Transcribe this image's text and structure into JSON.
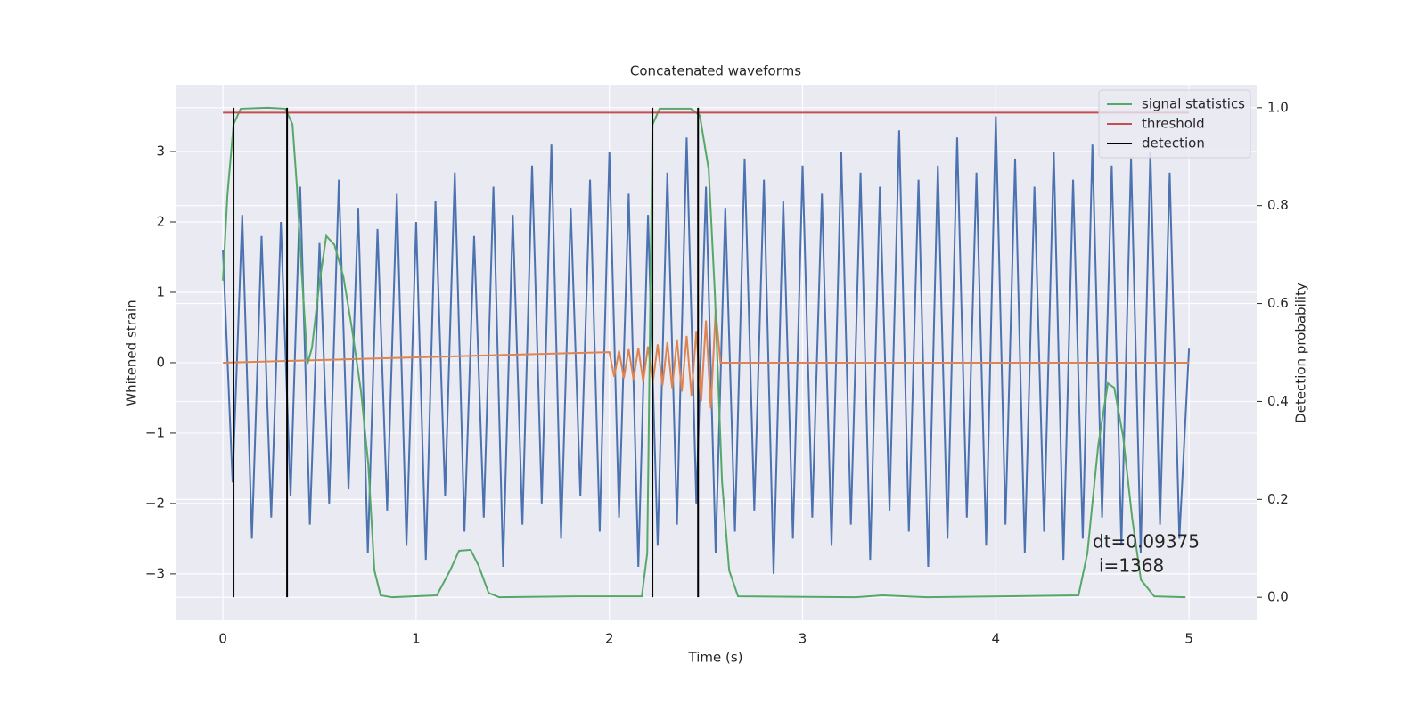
{
  "chart_data": {
    "type": "line",
    "title": "Concatenated waveforms",
    "x_label": "Time (s)",
    "y_label": "Whitened strain",
    "y2_label": "Detection probability",
    "xlim": [
      -0.245,
      5.35
    ],
    "ylim": [
      -3.66,
      3.95
    ],
    "y2lim": [
      -0.047,
      1.047
    ],
    "xticks": [
      0,
      1,
      2,
      3,
      4,
      5
    ],
    "yticks": [
      {
        "value": -3,
        "label": "−3"
      },
      {
        "value": -2,
        "label": "−2"
      },
      {
        "value": -1,
        "label": "−1"
      },
      0,
      1,
      2,
      3
    ],
    "y2ticks": [
      {
        "value": 0,
        "label": "0.0"
      },
      0.2,
      0.4,
      0.6,
      0.8,
      {
        "value": 1,
        "label": "1.0"
      }
    ],
    "grid": true,
    "legend": "upper right",
    "series": [
      {
        "color": "#4c72b0",
        "x": [
          0,
          0.05,
          0.1,
          0.15,
          0.2,
          0.25,
          0.3,
          0.35,
          0.4,
          0.45,
          0.5,
          0.55,
          0.6,
          0.65,
          0.7,
          0.75,
          0.8,
          0.85,
          0.9,
          0.95,
          1,
          1.05,
          1.1,
          1.15,
          1.2,
          1.25,
          1.3,
          1.35,
          1.4,
          1.45,
          1.5,
          1.55,
          1.6,
          1.65,
          1.7,
          1.75,
          1.8,
          1.85,
          1.9,
          1.95,
          2,
          2.05,
          2.1,
          2.15,
          2.2,
          2.25,
          2.3,
          2.35,
          2.4,
          2.45,
          2.5,
          2.55,
          2.6,
          2.65,
          2.7,
          2.75,
          2.8,
          2.85,
          2.9,
          2.95,
          3,
          3.05,
          3.1,
          3.15,
          3.2,
          3.25,
          3.3,
          3.35,
          3.4,
          3.45,
          3.5,
          3.55,
          3.6,
          3.65,
          3.7,
          3.75,
          3.8,
          3.85,
          3.9,
          3.95,
          4,
          4.05,
          4.1,
          4.15,
          4.2,
          4.25,
          4.3,
          4.35,
          4.4,
          4.45,
          4.5,
          4.55,
          4.6,
          4.65,
          4.7,
          4.75,
          4.8,
          4.85,
          4.9,
          4.95,
          5
        ],
        "values": [
          1.6,
          -1.7,
          2.1,
          -2.5,
          1.8,
          -2.2,
          2.0,
          -1.9,
          2.5,
          -2.3,
          1.7,
          -2.0,
          2.6,
          -1.8,
          2.2,
          -2.7,
          1.9,
          -2.1,
          2.4,
          -2.6,
          2.0,
          -2.8,
          2.3,
          -1.9,
          2.7,
          -2.4,
          1.8,
          -2.2,
          2.5,
          -2.9,
          2.1,
          -2.3,
          2.8,
          -2.0,
          3.1,
          -2.5,
          2.2,
          -1.9,
          2.6,
          -2.4,
          3.0,
          -2.2,
          2.4,
          -2.9,
          2.1,
          -2.6,
          2.7,
          -2.3,
          3.2,
          -2.0,
          2.5,
          -2.7,
          2.2,
          -2.4,
          2.9,
          -2.1,
          2.6,
          -3.0,
          2.3,
          -2.5,
          2.8,
          -2.2,
          2.4,
          -2.6,
          3.0,
          -2.3,
          2.7,
          -2.8,
          2.5,
          -2.1,
          3.3,
          -2.4,
          2.6,
          -2.9,
          2.8,
          -2.5,
          3.2,
          -2.2,
          2.7,
          -2.6,
          3.5,
          -2.3,
          2.9,
          -2.7,
          2.5,
          -2.4,
          3.0,
          -2.8,
          2.6,
          -2.5,
          3.1,
          -2.2,
          2.8,
          -2.6,
          2.9,
          -2.7,
          3.0,
          -2.3,
          2.7,
          -2.5,
          0.2
        ]
      },
      {
        "color": "#dd8452",
        "x": [
          0,
          2,
          2.025,
          2.05,
          2.075,
          2.1,
          2.125,
          2.15,
          2.175,
          2.2,
          2.225,
          2.25,
          2.275,
          2.3,
          2.325,
          2.35,
          2.375,
          2.4,
          2.425,
          2.45,
          2.475,
          2.5,
          2.525,
          2.55,
          2.575,
          5
        ],
        "values": [
          0,
          0.15,
          -0.2,
          0.17,
          -0.22,
          0.19,
          -0.24,
          0.21,
          -0.27,
          0.23,
          -0.29,
          0.26,
          -0.32,
          0.29,
          -0.36,
          0.33,
          -0.41,
          0.38,
          -0.47,
          0.45,
          -0.55,
          0.6,
          -0.65,
          0.75,
          0,
          0
        ]
      },
      {
        "name": "signal statistics",
        "color": "#55a868",
        "axis": "y2",
        "x": [
          0,
          0.023,
          0.055,
          0.092,
          0.231,
          0.323,
          0.36,
          0.383,
          0.406,
          0.438,
          0.461,
          0.498,
          0.535,
          0.577,
          0.623,
          0.669,
          0.715,
          0.752,
          0.784,
          0.816,
          0.876,
          1.107,
          1.176,
          1.222,
          1.282,
          1.324,
          1.375,
          1.43,
          1.845,
          2.168,
          2.196,
          2.223,
          2.26,
          2.422,
          2.468,
          2.514,
          2.546,
          2.583,
          2.62,
          2.666,
          3.275,
          3.413,
          3.644,
          4.428,
          4.474,
          4.53,
          4.58,
          4.613,
          4.659,
          4.705,
          4.751,
          4.82,
          4.982
        ],
        "values": [
          0.647,
          0.82,
          0.966,
          0.998,
          1.0,
          0.998,
          0.966,
          0.838,
          0.674,
          0.477,
          0.51,
          0.638,
          0.738,
          0.72,
          0.656,
          0.546,
          0.419,
          0.273,
          0.055,
          0.004,
          0.0,
          0.004,
          0.055,
          0.095,
          0.097,
          0.064,
          0.009,
          0.0,
          0.002,
          0.002,
          0.09,
          0.965,
          0.998,
          0.998,
          0.984,
          0.874,
          0.62,
          0.237,
          0.055,
          0.002,
          0.0,
          0.004,
          0.0,
          0.004,
          0.09,
          0.31,
          0.437,
          0.428,
          0.328,
          0.164,
          0.036,
          0.002,
          0.0
        ]
      },
      {
        "name": "threshold",
        "color": "#c44e52",
        "axis": "y2",
        "x": [
          0,
          5
        ],
        "values": [
          0.99,
          0.99
        ]
      }
    ],
    "detection": {
      "name": "detection",
      "color": "#000000",
      "x": [
        0.055,
        0.332,
        2.223,
        2.459
      ],
      "span": [
        0,
        1
      ]
    },
    "annotation": [
      "dt=0.09375",
      "i=1368"
    ]
  }
}
